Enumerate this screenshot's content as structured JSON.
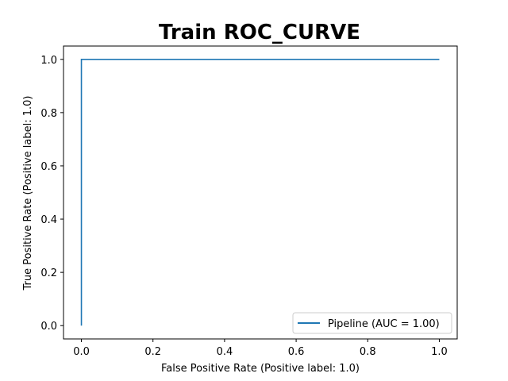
{
  "chart_data": {
    "type": "line",
    "title": "Train ROC_CURVE",
    "xlabel": "False Positive Rate (Positive label: 1.0)",
    "ylabel": "True Positive Rate (Positive label: 1.0)",
    "xlim": [
      -0.05,
      1.05
    ],
    "ylim": [
      -0.05,
      1.05
    ],
    "xticks": [
      0.0,
      0.2,
      0.4,
      0.6,
      0.8,
      1.0
    ],
    "xtick_labels": [
      "0.0",
      "0.2",
      "0.4",
      "0.6",
      "0.8",
      "1.0"
    ],
    "yticks": [
      0.0,
      0.2,
      0.4,
      0.6,
      0.8,
      1.0
    ],
    "ytick_labels": [
      "0.0",
      "0.2",
      "0.4",
      "0.6",
      "0.8",
      "1.0"
    ],
    "grid": false,
    "legend_position": "lower-right",
    "series": [
      {
        "name": "Pipeline (AUC = 1.00)",
        "color": "#1f77b4",
        "x": [
          0.0,
          0.0,
          1.0
        ],
        "y": [
          0.0,
          1.0,
          1.0
        ]
      }
    ]
  }
}
